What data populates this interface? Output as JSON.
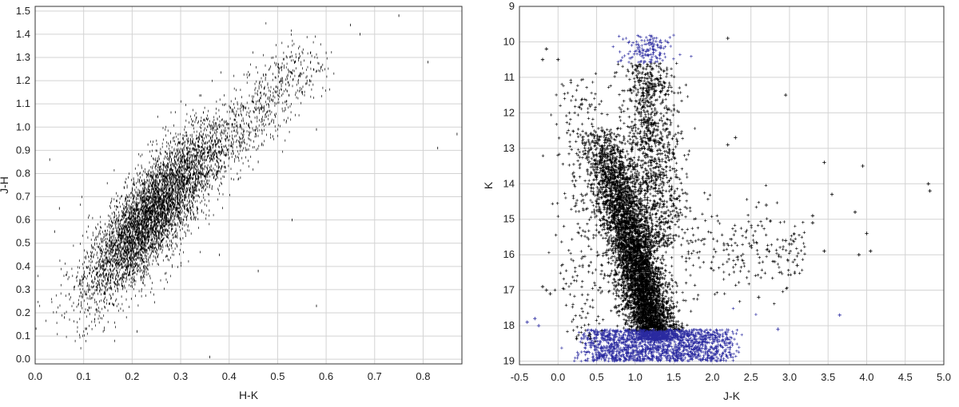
{
  "chart_data": [
    {
      "type": "scatter",
      "xlabel": "H-K",
      "ylabel": "J-H",
      "xlim": [
        0.0,
        0.88
      ],
      "ylim": [
        -0.02,
        1.52
      ],
      "xticks": [
        "0.0",
        "0.1",
        "0.2",
        "0.3",
        "0.4",
        "0.5",
        "0.6",
        "0.7",
        "0.8"
      ],
      "yticks": [
        "0.0",
        "0.1",
        "0.2",
        "0.3",
        "0.4",
        "0.5",
        "0.6",
        "0.7",
        "0.8",
        "0.9",
        "1.0",
        "1.1",
        "1.2",
        "1.3",
        "1.4",
        "1.5"
      ],
      "grid": true,
      "marker_color": "#000000",
      "density_core": {
        "main_branch": [
          [
            0.15,
            0.42
          ],
          [
            0.22,
            0.6
          ],
          [
            0.3,
            0.78
          ],
          [
            0.4,
            1.0
          ],
          [
            0.48,
            1.18
          ],
          [
            0.52,
            1.28
          ]
        ],
        "dense_center": [
          0.22,
          0.6
        ]
      },
      "outliers": [
        {
          "x": 0.03,
          "y": 0.86
        },
        {
          "x": 0.05,
          "y": 0.65
        },
        {
          "x": 0.04,
          "y": 0.55
        },
        {
          "x": 0.07,
          "y": 0.28
        },
        {
          "x": 0.06,
          "y": 0.18
        },
        {
          "x": 0.21,
          "y": 0.12
        },
        {
          "x": 0.36,
          "y": 0.01
        },
        {
          "x": 0.58,
          "y": 0.23
        },
        {
          "x": 0.6,
          "y": 1.32
        },
        {
          "x": 0.65,
          "y": 1.44
        },
        {
          "x": 0.67,
          "y": 1.4
        },
        {
          "x": 0.75,
          "y": 1.48
        },
        {
          "x": 0.81,
          "y": 1.28
        },
        {
          "x": 0.83,
          "y": 0.91
        },
        {
          "x": 0.87,
          "y": 0.97
        },
        {
          "x": 0.53,
          "y": 0.6
        },
        {
          "x": 0.46,
          "y": 0.38
        },
        {
          "x": 0.57,
          "y": 1.22
        },
        {
          "x": 0.55,
          "y": 1.15
        },
        {
          "x": 0.46,
          "y": 0.85
        },
        {
          "x": 0.38,
          "y": 0.45
        },
        {
          "x": 0.58,
          "y": 0.99
        },
        {
          "x": 0.49,
          "y": 0.96
        }
      ]
    },
    {
      "type": "scatter",
      "xlabel": "J-K",
      "ylabel": "K",
      "xlim": [
        -0.5,
        5.0
      ],
      "ylim": [
        19.1,
        9.0
      ],
      "y_inverted": true,
      "xticks": [
        "-0.5",
        "0.0",
        "0.5",
        "1.0",
        "1.5",
        "2.0",
        "2.5",
        "3.0",
        "3.5",
        "4.0",
        "4.5",
        "5.0"
      ],
      "yticks": [
        "9",
        "10",
        "11",
        "12",
        "13",
        "14",
        "15",
        "16",
        "17",
        "18",
        "19"
      ],
      "grid": true,
      "marker_colors": {
        "bright": "#000000",
        "faint": "#2a2aa0"
      },
      "density_core": {
        "dwarf_sequence": [
          [
            0.6,
            13.0
          ],
          [
            0.7,
            14.5
          ],
          [
            0.9,
            16.0
          ],
          [
            1.2,
            17.2
          ],
          [
            1.5,
            18.0
          ]
        ],
        "giant_branch": [
          [
            1.1,
            10.5
          ],
          [
            1.2,
            12.0
          ],
          [
            1.3,
            13.5
          ],
          [
            1.5,
            15.0
          ]
        ],
        "faint_limit": 18.3
      },
      "outliers": [
        {
          "x": -0.2,
          "y": 10.5
        },
        {
          "x": -0.15,
          "y": 10.2
        },
        {
          "x": 0.0,
          "y": 10.5
        },
        {
          "x": 2.2,
          "y": 9.9
        },
        {
          "x": 2.2,
          "y": 12.9
        },
        {
          "x": 2.3,
          "y": 12.7
        },
        {
          "x": 2.95,
          "y": 11.5
        },
        {
          "x": 3.45,
          "y": 13.4
        },
        {
          "x": 3.95,
          "y": 13.5
        },
        {
          "x": 4.8,
          "y": 14.0
        },
        {
          "x": 4.82,
          "y": 14.2
        },
        {
          "x": 3.55,
          "y": 14.3
        },
        {
          "x": 3.3,
          "y": 15.1
        },
        {
          "x": 3.3,
          "y": 14.9
        },
        {
          "x": 3.85,
          "y": 14.8
        },
        {
          "x": 4.0,
          "y": 15.4
        },
        {
          "x": 4.05,
          "y": 15.9
        },
        {
          "x": 3.9,
          "y": 16.0
        },
        {
          "x": 3.45,
          "y": 15.9
        },
        {
          "x": 3.65,
          "y": 17.7
        },
        {
          "x": 2.7,
          "y": 14.6
        },
        {
          "x": 2.95,
          "y": 15.6
        },
        {
          "x": 3.0,
          "y": 15.7
        },
        {
          "x": 3.1,
          "y": 16.3
        },
        {
          "x": -0.3,
          "y": 17.8
        },
        {
          "x": -0.4,
          "y": 17.9
        },
        {
          "x": -0.25,
          "y": 18.0
        },
        {
          "x": -0.2,
          "y": 16.9
        },
        {
          "x": -0.15,
          "y": 17.0
        },
        {
          "x": -0.1,
          "y": 17.1
        },
        {
          "x": 2.85,
          "y": 18.1
        },
        {
          "x": 2.6,
          "y": 17.2
        }
      ]
    }
  ]
}
